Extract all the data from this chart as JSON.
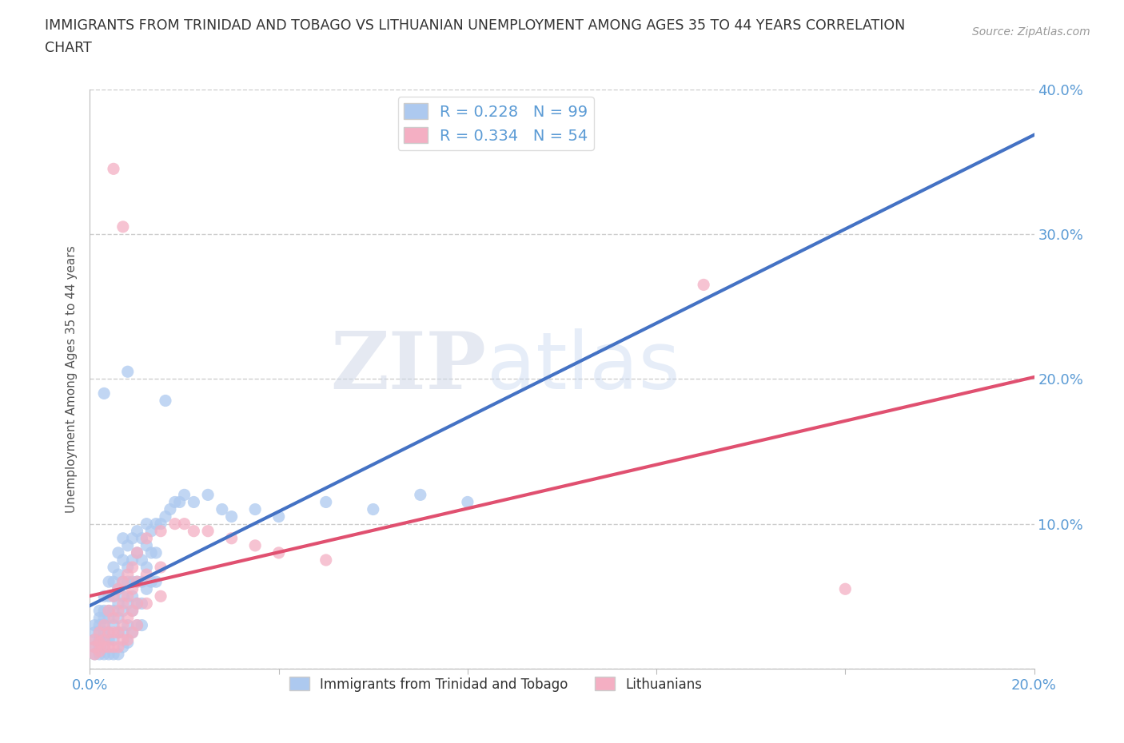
{
  "title_line1": "IMMIGRANTS FROM TRINIDAD AND TOBAGO VS LITHUANIAN UNEMPLOYMENT AMONG AGES 35 TO 44 YEARS CORRELATION",
  "title_line2": "CHART",
  "source": "Source: ZipAtlas.com",
  "ylabel": "Unemployment Among Ages 35 to 44 years",
  "x_min": 0.0,
  "x_max": 0.2,
  "y_min": 0.0,
  "y_max": 0.4,
  "x_tick_positions": [
    0.0,
    0.04,
    0.08,
    0.12,
    0.16,
    0.2
  ],
  "x_tick_labels": [
    "0.0%",
    "",
    "",
    "",
    "",
    "20.0%"
  ],
  "y_tick_positions": [
    0.0,
    0.1,
    0.2,
    0.3,
    0.4
  ],
  "y_tick_labels_right": [
    "",
    "10.0%",
    "20.0%",
    "30.0%",
    "40.0%"
  ],
  "blue_color": "#adc9ef",
  "pink_color": "#f4afc3",
  "blue_line_color": "#4472c4",
  "pink_line_color": "#e05070",
  "blue_line_style": "-",
  "pink_line_style": "-",
  "blue_dash_style": "--",
  "R_blue": 0.228,
  "N_blue": 99,
  "R_pink": 0.334,
  "N_pink": 54,
  "legend_label_blue": "Immigrants from Trinidad and Tobago",
  "legend_label_pink": "Lithuanians",
  "watermark_zip": "ZIP",
  "watermark_atlas": "atlas",
  "grid_color": "#c8c8c8",
  "bg_color": "#ffffff",
  "tick_color": "#5b9bd5",
  "blue_scatter": [
    [
      0.001,
      0.02
    ],
    [
      0.001,
      0.015
    ],
    [
      0.001,
      0.01
    ],
    [
      0.001,
      0.025
    ],
    [
      0.001,
      0.03
    ],
    [
      0.002,
      0.03
    ],
    [
      0.002,
      0.025
    ],
    [
      0.002,
      0.02
    ],
    [
      0.002,
      0.015
    ],
    [
      0.002,
      0.01
    ],
    [
      0.002,
      0.04
    ],
    [
      0.002,
      0.035
    ],
    [
      0.003,
      0.05
    ],
    [
      0.003,
      0.04
    ],
    [
      0.003,
      0.035
    ],
    [
      0.003,
      0.03
    ],
    [
      0.003,
      0.025
    ],
    [
      0.003,
      0.02
    ],
    [
      0.003,
      0.015
    ],
    [
      0.003,
      0.01
    ],
    [
      0.004,
      0.06
    ],
    [
      0.004,
      0.05
    ],
    [
      0.004,
      0.04
    ],
    [
      0.004,
      0.035
    ],
    [
      0.004,
      0.025
    ],
    [
      0.004,
      0.02
    ],
    [
      0.004,
      0.01
    ],
    [
      0.005,
      0.07
    ],
    [
      0.005,
      0.06
    ],
    [
      0.005,
      0.05
    ],
    [
      0.005,
      0.04
    ],
    [
      0.005,
      0.03
    ],
    [
      0.005,
      0.02
    ],
    [
      0.005,
      0.01
    ],
    [
      0.006,
      0.08
    ],
    [
      0.006,
      0.065
    ],
    [
      0.006,
      0.055
    ],
    [
      0.006,
      0.045
    ],
    [
      0.006,
      0.035
    ],
    [
      0.006,
      0.025
    ],
    [
      0.006,
      0.01
    ],
    [
      0.007,
      0.09
    ],
    [
      0.007,
      0.075
    ],
    [
      0.007,
      0.06
    ],
    [
      0.007,
      0.05
    ],
    [
      0.007,
      0.04
    ],
    [
      0.007,
      0.025
    ],
    [
      0.007,
      0.015
    ],
    [
      0.008,
      0.085
    ],
    [
      0.008,
      0.07
    ],
    [
      0.008,
      0.06
    ],
    [
      0.008,
      0.045
    ],
    [
      0.008,
      0.03
    ],
    [
      0.008,
      0.018
    ],
    [
      0.009,
      0.09
    ],
    [
      0.009,
      0.075
    ],
    [
      0.009,
      0.06
    ],
    [
      0.009,
      0.05
    ],
    [
      0.009,
      0.04
    ],
    [
      0.009,
      0.025
    ],
    [
      0.01,
      0.095
    ],
    [
      0.01,
      0.08
    ],
    [
      0.01,
      0.06
    ],
    [
      0.01,
      0.045
    ],
    [
      0.01,
      0.03
    ],
    [
      0.011,
      0.09
    ],
    [
      0.011,
      0.075
    ],
    [
      0.011,
      0.06
    ],
    [
      0.011,
      0.045
    ],
    [
      0.011,
      0.03
    ],
    [
      0.012,
      0.1
    ],
    [
      0.012,
      0.085
    ],
    [
      0.012,
      0.07
    ],
    [
      0.012,
      0.055
    ],
    [
      0.013,
      0.095
    ],
    [
      0.013,
      0.08
    ],
    [
      0.013,
      0.06
    ],
    [
      0.014,
      0.1
    ],
    [
      0.014,
      0.08
    ],
    [
      0.014,
      0.06
    ],
    [
      0.015,
      0.1
    ],
    [
      0.016,
      0.105
    ],
    [
      0.017,
      0.11
    ],
    [
      0.018,
      0.115
    ],
    [
      0.019,
      0.115
    ],
    [
      0.02,
      0.12
    ],
    [
      0.022,
      0.115
    ],
    [
      0.025,
      0.12
    ],
    [
      0.028,
      0.11
    ],
    [
      0.03,
      0.105
    ],
    [
      0.035,
      0.11
    ],
    [
      0.04,
      0.105
    ],
    [
      0.003,
      0.19
    ],
    [
      0.05,
      0.115
    ],
    [
      0.06,
      0.11
    ],
    [
      0.008,
      0.205
    ],
    [
      0.07,
      0.12
    ],
    [
      0.08,
      0.115
    ],
    [
      0.016,
      0.185
    ]
  ],
  "pink_scatter": [
    [
      0.001,
      0.02
    ],
    [
      0.001,
      0.015
    ],
    [
      0.001,
      0.01
    ],
    [
      0.002,
      0.025
    ],
    [
      0.002,
      0.018
    ],
    [
      0.002,
      0.012
    ],
    [
      0.003,
      0.03
    ],
    [
      0.003,
      0.02
    ],
    [
      0.003,
      0.015
    ],
    [
      0.004,
      0.04
    ],
    [
      0.004,
      0.025
    ],
    [
      0.004,
      0.015
    ],
    [
      0.005,
      0.05
    ],
    [
      0.005,
      0.035
    ],
    [
      0.005,
      0.025
    ],
    [
      0.005,
      0.015
    ],
    [
      0.006,
      0.055
    ],
    [
      0.006,
      0.04
    ],
    [
      0.006,
      0.025
    ],
    [
      0.006,
      0.015
    ],
    [
      0.007,
      0.06
    ],
    [
      0.007,
      0.045
    ],
    [
      0.007,
      0.03
    ],
    [
      0.007,
      0.02
    ],
    [
      0.008,
      0.065
    ],
    [
      0.008,
      0.05
    ],
    [
      0.008,
      0.035
    ],
    [
      0.008,
      0.02
    ],
    [
      0.009,
      0.07
    ],
    [
      0.009,
      0.055
    ],
    [
      0.009,
      0.04
    ],
    [
      0.009,
      0.025
    ],
    [
      0.01,
      0.08
    ],
    [
      0.01,
      0.06
    ],
    [
      0.01,
      0.045
    ],
    [
      0.01,
      0.03
    ],
    [
      0.012,
      0.09
    ],
    [
      0.012,
      0.065
    ],
    [
      0.012,
      0.045
    ],
    [
      0.015,
      0.095
    ],
    [
      0.015,
      0.07
    ],
    [
      0.015,
      0.05
    ],
    [
      0.018,
      0.1
    ],
    [
      0.02,
      0.1
    ],
    [
      0.022,
      0.095
    ],
    [
      0.025,
      0.095
    ],
    [
      0.03,
      0.09
    ],
    [
      0.035,
      0.085
    ],
    [
      0.04,
      0.08
    ],
    [
      0.05,
      0.075
    ],
    [
      0.007,
      0.305
    ],
    [
      0.005,
      0.345
    ],
    [
      0.13,
      0.265
    ],
    [
      0.16,
      0.055
    ]
  ]
}
